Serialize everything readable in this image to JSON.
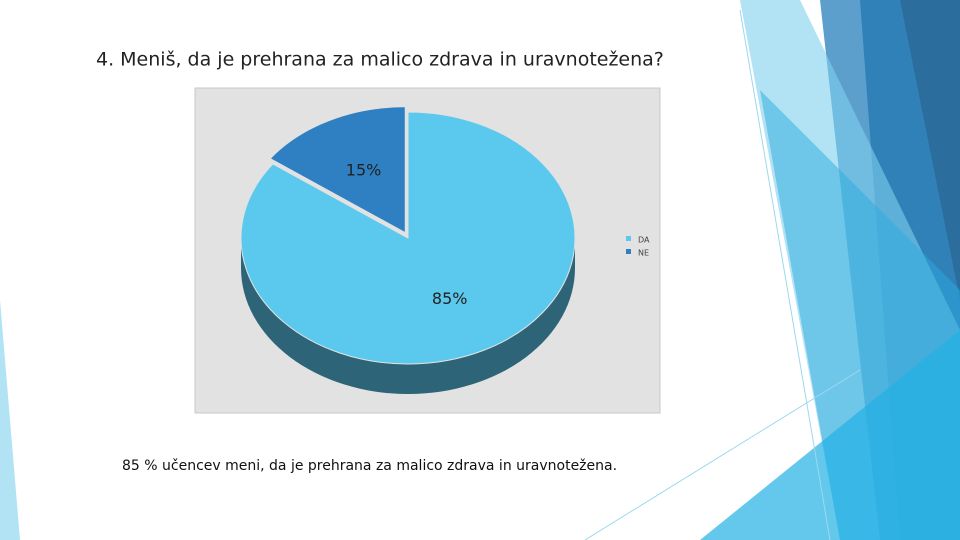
{
  "chart_data": {
    "type": "pie",
    "title": "4. Meniš, da je prehrana za malico zdrava in uravnotežena?",
    "categories": [
      "DA",
      "NE"
    ],
    "values": [
      85,
      15
    ],
    "value_labels": [
      "85%",
      "15%"
    ],
    "colors": [
      "#5bc9ee",
      "#2e80c2"
    ],
    "legend": "right"
  },
  "caption": "85 % učencev meni, da je prehrana za malico zdrava in uravnotežena."
}
